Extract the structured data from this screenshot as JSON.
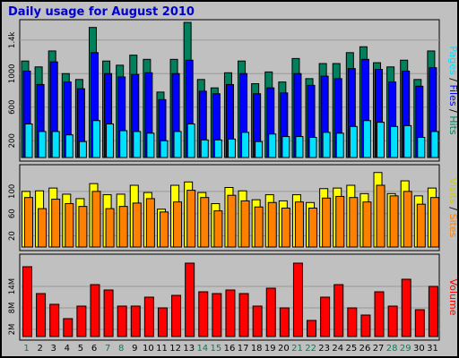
{
  "chart_data": {
    "title": "Daily usage for August 2010",
    "type": "bar",
    "days": [
      "1",
      "2",
      "3",
      "4",
      "5",
      "6",
      "7",
      "8",
      "9",
      "10",
      "11",
      "12",
      "13",
      "14",
      "15",
      "16",
      "17",
      "18",
      "19",
      "20",
      "21",
      "22",
      "23",
      "24",
      "25",
      "26",
      "27",
      "28",
      "29",
      "30",
      "31"
    ],
    "weekend_days": [
      "1",
      "7",
      "8",
      "14",
      "15",
      "21",
      "22",
      "28",
      "29"
    ],
    "colors": {
      "hits": "#00805c",
      "files": "#0000ff",
      "pages": "#00e0ff",
      "visits": "#ffff00",
      "sites": "#ff8000",
      "volume": "#ff0000",
      "weekday_label": "#000000",
      "weekend_label": "#00805c",
      "background": "#c0c0c0",
      "plot": "#c0c0c0",
      "border": "#000000"
    },
    "panels": [
      {
        "name": "top",
        "y_ticks": [
          {
            "label": "200",
            "value": 200
          },
          {
            "label": "600",
            "value": 600
          },
          {
            "label": "1000",
            "value": 1000
          },
          {
            "label": "1.4k",
            "value": 1400
          }
        ],
        "ylim": [
          0,
          1600
        ],
        "ylabel": [
          {
            "text": "Pages",
            "color": "#00e0ff"
          },
          {
            "text": " / ",
            "color": "#000000"
          },
          {
            "text": "Files",
            "color": "#0000ff"
          },
          {
            "text": " / ",
            "color": "#000000"
          },
          {
            "text": "Hits",
            "color": "#00805c"
          }
        ],
        "series": [
          {
            "key": "hits",
            "values": [
              1150,
              1080,
              1270,
              1000,
              930,
              1550,
              1150,
              1100,
              1220,
              1170,
              780,
              1170,
              1610,
              930,
              830,
              1010,
              1150,
              880,
              1020,
              900,
              1180,
              940,
              1120,
              1120,
              1250,
              1320,
              1130,
              1080,
              1160,
              930,
              1270
            ]
          },
          {
            "key": "files",
            "values": [
              1030,
              870,
              1140,
              900,
              820,
              1250,
              1000,
              960,
              990,
              1010,
              690,
              1000,
              1160,
              790,
              760,
              870,
              1000,
              760,
              830,
              770,
              1000,
              860,
              970,
              940,
              1060,
              1170,
              1050,
              900,
              1030,
              850,
              1070
            ]
          },
          {
            "key": "pages",
            "values": [
              400,
              310,
              310,
              270,
              190,
              440,
              400,
              320,
              310,
              290,
              200,
              310,
              400,
              210,
              210,
              220,
              300,
              190,
              280,
              250,
              250,
              240,
              300,
              290,
              370,
              440,
              420,
              370,
              380,
              240,
              310
            ]
          }
        ]
      },
      {
        "name": "middle",
        "y_ticks": [
          {
            "label": "20",
            "value": 20
          },
          {
            "label": "60",
            "value": 60
          },
          {
            "label": "100",
            "value": 100
          }
        ],
        "ylim": [
          0,
          140
        ],
        "ylabel": [
          {
            "text": "Visits",
            "color": "#cccc00"
          },
          {
            "text": " / ",
            "color": "#000000"
          },
          {
            "text": "Sites",
            "color": "#ff8000"
          }
        ],
        "series": [
          {
            "key": "visits",
            "values": [
              100,
              101,
              106,
              95,
              87,
              114,
              94,
              95,
              111,
              98,
              68,
              111,
              117,
              98,
              78,
              107,
              101,
              85,
              94,
              83,
              94,
              80,
              105,
              106,
              111,
              96,
              134,
              96,
              119,
              92,
              106
            ]
          },
          {
            "key": "sites",
            "values": [
              89,
              69,
              86,
              78,
              73,
              100,
              69,
              73,
              79,
              87,
              63,
              81,
              102,
              89,
              65,
              93,
              83,
              72,
              80,
              70,
              81,
              70,
              88,
              91,
              89,
              81,
              111,
              92,
              100,
              77,
              89
            ]
          }
        ]
      },
      {
        "name": "bottom",
        "y_ticks": [
          {
            "label": "2M",
            "value": 2
          },
          {
            "label": "8M",
            "value": 8
          },
          {
            "label": "14M",
            "value": 14
          }
        ],
        "ylim": [
          0,
          22
        ],
        "ylabel": [
          {
            "text": "Volume",
            "color": "#ff0000"
          }
        ],
        "series": [
          {
            "key": "volume",
            "values": [
              19.5,
              12,
              9,
              5,
              8.5,
              14.5,
              13,
              8.5,
              8.5,
              11,
              8,
              11.5,
              20.5,
              12.5,
              12,
              13,
              12,
              8.5,
              13.5,
              8,
              20.5,
              4.5,
              11,
              14.5,
              8,
              6,
              12.5,
              8.5,
              16,
              7.5,
              14
            ]
          }
        ]
      }
    ]
  }
}
